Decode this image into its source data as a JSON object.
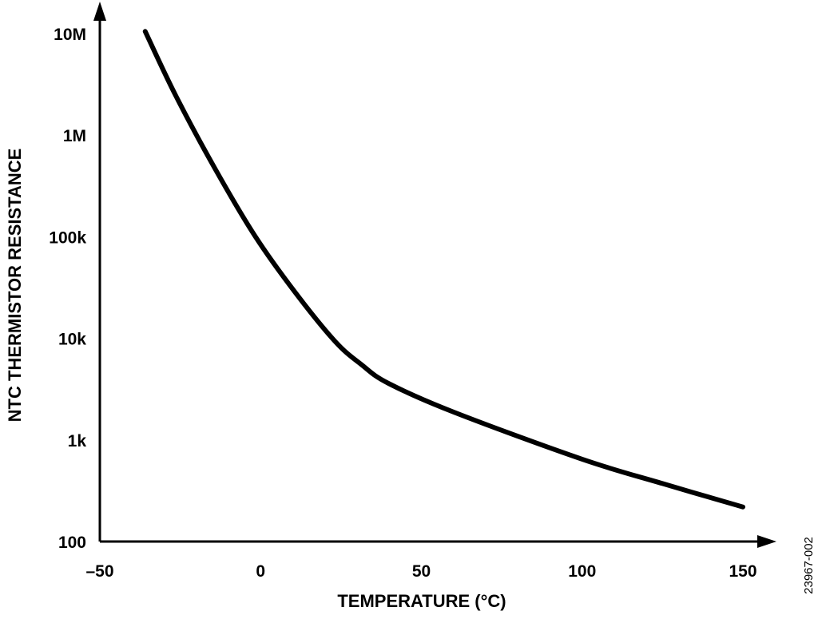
{
  "chart_data": {
    "type": "line",
    "title": "",
    "xlabel": "TEMPERATURE (°C)",
    "ylabel": "NTC THERMISTOR RESISTANCE",
    "xlim": [
      -50,
      150
    ],
    "ylim": [
      100,
      10000000
    ],
    "yscale": "log",
    "grid": false,
    "x_ticks": [
      -50,
      0,
      50,
      100,
      150
    ],
    "x_tick_labels": [
      "–50",
      "0",
      "50",
      "100",
      "150"
    ],
    "y_ticks": [
      100,
      1000,
      10000,
      100000,
      1000000,
      10000000
    ],
    "y_tick_labels": [
      "100",
      "1k",
      "10k",
      "100k",
      "1M",
      "10M"
    ],
    "series": [
      {
        "name": "NTC thermistor",
        "color": "#000000",
        "x": [
          -35.9,
          -26.4,
          -14.0,
          -1.6,
          10.8,
          23.2,
          31.4,
          39.8,
          60.4,
          100,
          125,
          150
        ],
        "y": [
          10500000,
          2450000,
          457000,
          100000,
          28200,
          9300,
          5500,
          3600,
          1860,
          646,
          372,
          219
        ]
      }
    ],
    "figure_id": "23967-002"
  }
}
